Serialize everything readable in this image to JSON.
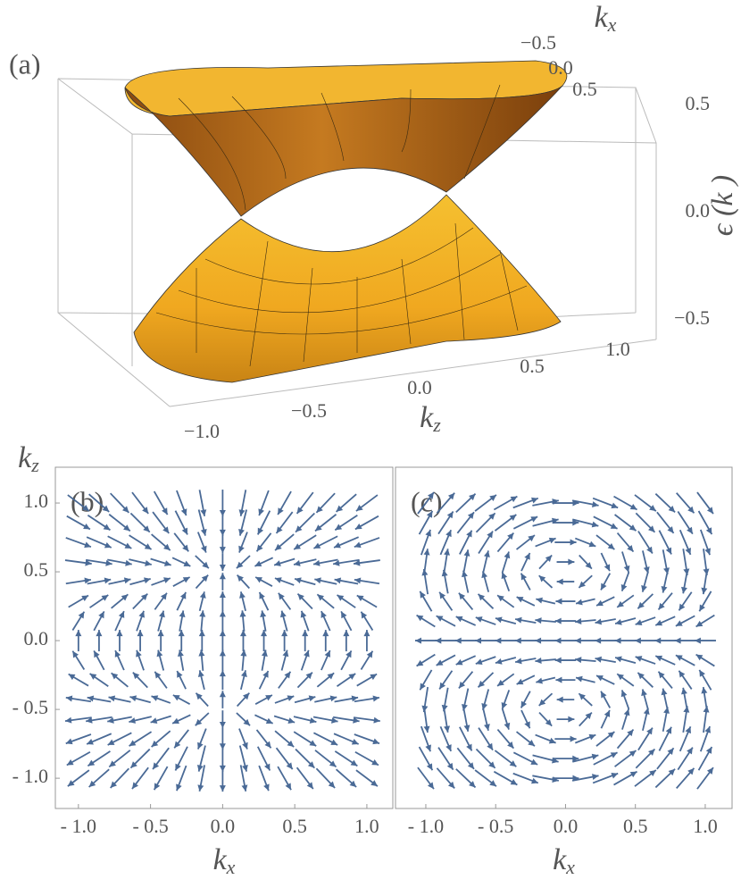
{
  "chart_data": [
    {
      "type": "surface",
      "panel_label": "(a)",
      "x_label": "k",
      "x_label_sub": "x",
      "y_label": "k",
      "y_label_sub": "z",
      "z_label": "ϵ (k )",
      "xticks": [
        {
          "value": -0.5,
          "label": "−0.5"
        },
        {
          "value": 0,
          "label": "0.0"
        },
        0.5
      ],
      "yticks": [
        {
          "value": -1,
          "label": "−1.0"
        },
        {
          "value": -0.5,
          "label": "−0.5"
        },
        {
          "value": 0,
          "label": "0.0"
        },
        0.5,
        {
          "value": 1,
          "label": "1.0"
        }
      ],
      "zticks": [
        0.5,
        {
          "value": 0,
          "label": "0.0"
        },
        {
          "value": -0.5,
          "label": "−0.5"
        }
      ]
    },
    {
      "type": "vector",
      "panel_label": "(b)",
      "x_label": "k",
      "x_label_sub": "x",
      "y_label": "k",
      "y_label_sub": "z",
      "color": "#4a6a96",
      "xlim": [
        -1.16,
        1.18
      ],
      "ylim": [
        -1.22,
        1.26
      ],
      "xticks": [
        {
          "value": -1,
          "label": "- 1.0"
        },
        {
          "value": -0.5,
          "label": "- 0.5"
        },
        {
          "value": 0,
          "label": "0.0"
        },
        0.5,
        {
          "value": 1,
          "label": "1.0"
        }
      ],
      "yticks": [
        {
          "value": 1,
          "label": "1.0"
        },
        0.5,
        {
          "value": 0,
          "label": "0.0"
        },
        {
          "value": -0.5,
          "label": "- 0.5"
        },
        {
          "value": -1,
          "label": "- 1.0"
        }
      ]
    },
    {
      "type": "vector",
      "panel_label": "(c)",
      "x_label": "k",
      "x_label_sub": "x",
      "color": "#4a6a96",
      "xlim": [
        -1.217,
        1.192
      ],
      "ylim": [
        -1.22,
        1.26
      ],
      "xticks": [
        {
          "value": -1,
          "label": "- 1.0"
        },
        {
          "value": -0.5,
          "label": "- 0.5"
        },
        {
          "value": 0,
          "label": "0.0"
        },
        0.5,
        {
          "value": 1,
          "label": "1.0"
        }
      ]
    }
  ]
}
